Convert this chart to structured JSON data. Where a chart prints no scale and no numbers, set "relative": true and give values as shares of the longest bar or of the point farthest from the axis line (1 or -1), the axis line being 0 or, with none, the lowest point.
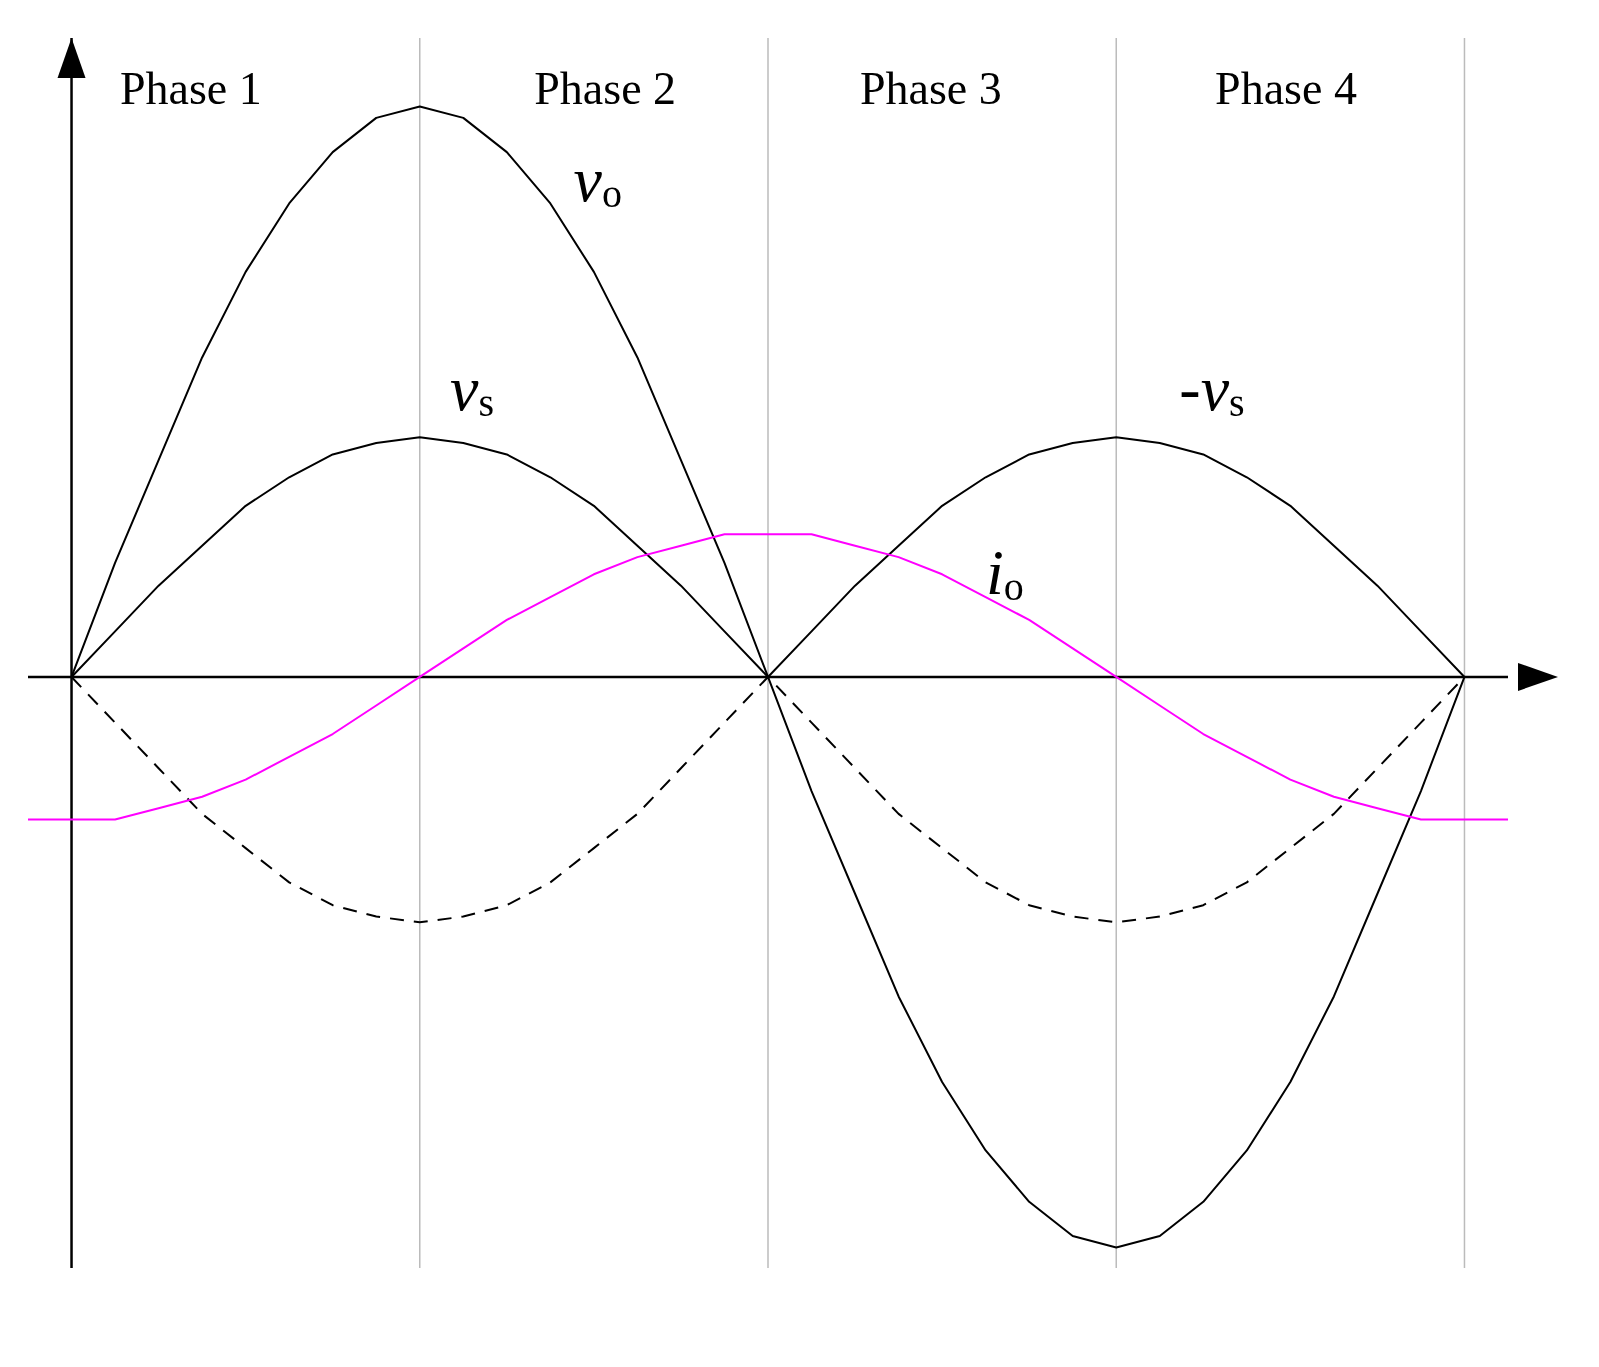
{
  "chart_data": {
    "type": "line",
    "relative": true,
    "grid": "x",
    "categories": [
      null,
      null,
      null,
      null,
      null,
      null,
      null,
      null,
      null,
      null,
      null,
      null,
      null,
      null,
      null,
      null,
      null,
      null,
      null,
      null,
      null,
      null,
      null,
      null,
      null,
      null,
      null,
      null,
      null,
      null,
      null,
      null,
      null,
      null,
      null
    ],
    "series": [
      {
        "color": "#000000",
        "values": [
          null,
          0,
          0.2,
          0.38,
          0.56,
          0.71,
          0.83,
          0.92,
          0.98,
          1,
          0.98,
          0.92,
          0.83,
          0.71,
          0.56,
          0.38,
          0.2,
          0,
          -0.2,
          -0.38,
          -0.56,
          -0.71,
          -0.83,
          -0.92,
          -0.98,
          -1,
          -0.98,
          -0.92,
          -0.83,
          -0.71,
          -0.56,
          -0.38,
          -0.2,
          0,
          null
        ]
      },
      {
        "color": "#000000",
        "values": [
          null,
          0,
          0.08,
          0.16,
          0.23,
          0.3,
          0.35,
          0.39,
          0.41,
          0.42,
          0.41,
          0.39,
          0.35,
          0.3,
          0.23,
          0.16,
          0.08,
          0,
          0.08,
          0.16,
          0.23,
          0.3,
          0.35,
          0.39,
          0.41,
          0.42,
          0.41,
          0.39,
          0.35,
          0.3,
          0.23,
          0.16,
          0.08,
          0,
          null
        ]
      },
      {
        "color": "#000000",
        "line_style": "dashed",
        "values": [
          null,
          0,
          -0.08,
          -0.16,
          -0.24,
          -0.3,
          -0.36,
          -0.4,
          -0.42,
          -0.43,
          -0.42,
          -0.4,
          -0.36,
          -0.3,
          -0.24,
          -0.16,
          -0.08,
          0,
          -0.08,
          -0.16,
          -0.24,
          -0.3,
          -0.36,
          -0.4,
          -0.42,
          -0.43,
          -0.42,
          -0.4,
          -0.36,
          -0.3,
          -0.24,
          -0.16,
          -0.08,
          0,
          null
        ]
      },
      {
        "color": "#ff00ff",
        "values": [
          -0.25,
          -0.25,
          -0.25,
          -0.23,
          -0.21,
          -0.18,
          -0.14,
          -0.1,
          -0.05,
          0,
          0.05,
          0.1,
          0.14,
          0.18,
          0.21,
          0.23,
          0.25,
          0.25,
          0.25,
          0.23,
          0.21,
          0.18,
          0.14,
          0.1,
          0.05,
          0,
          -0.05,
          -0.1,
          -0.14,
          -0.18,
          -0.21,
          -0.23,
          -0.25,
          -0.25,
          -0.25
        ]
      }
    ],
    "ref_lines": [
      {
        "axis": "y",
        "value": 0,
        "color": "#000000"
      }
    ],
    "annotations": [
      "Phase 1",
      "Phase 2",
      "Phase 3",
      "Phase 4",
      "v$_{o}$",
      "v$_{s}$",
      "-v$_{s}$",
      "i$_{o}$"
    ]
  }
}
